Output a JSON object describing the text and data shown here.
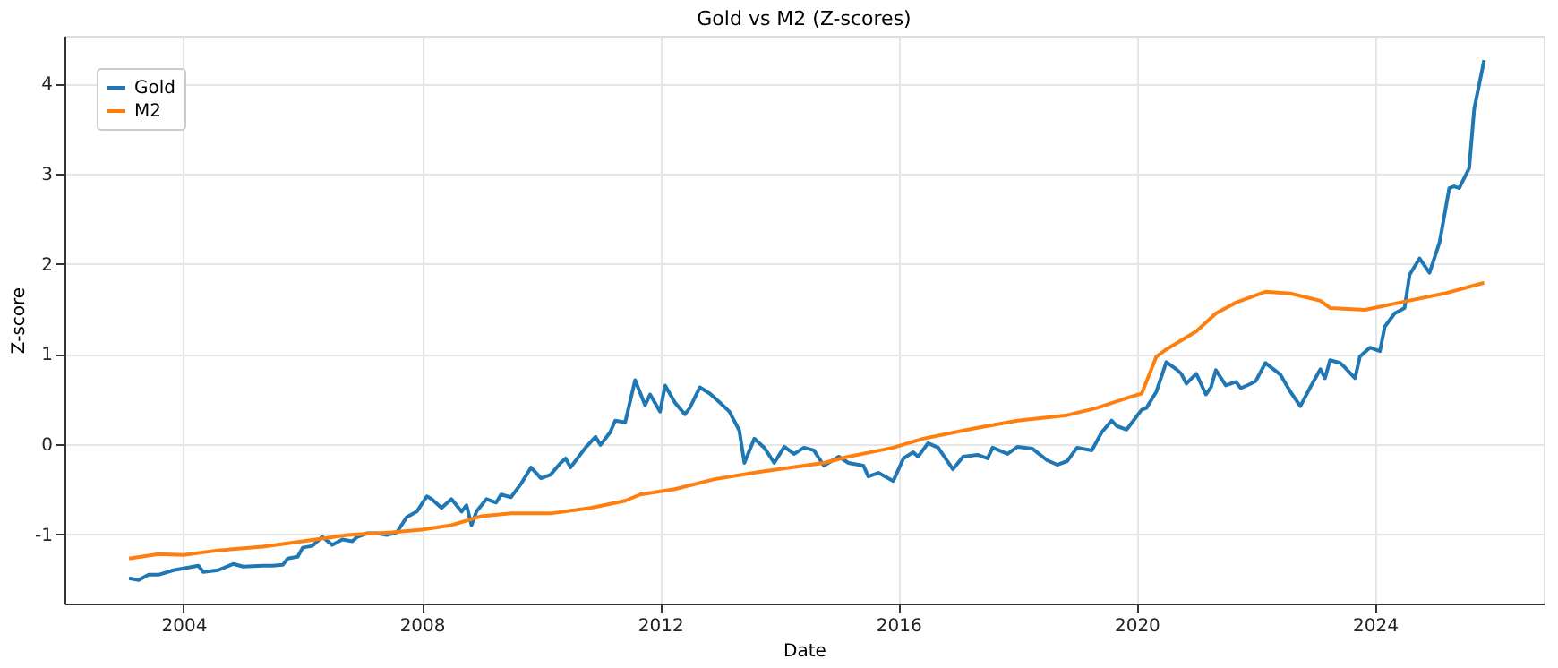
{
  "chart_data": {
    "type": "line",
    "title": "Gold vs M2 (Z-scores)",
    "xlabel": "Date",
    "ylabel": "Z-score",
    "xlim": [
      "2002-01",
      "2026-11"
    ],
    "xticks": [
      "2004",
      "2008",
      "2012",
      "2016",
      "2020",
      "2024"
    ],
    "ylim": [
      -1.77,
      4.53
    ],
    "yticks": [
      -1,
      0,
      1,
      2,
      3,
      4
    ],
    "grid": true,
    "legend": "top left",
    "marker": "none",
    "line_style": "solid",
    "series": [
      {
        "name": "Gold",
        "color": "#1f77b4",
        "x": [
          "2003-02",
          "2003-04",
          "2003-06",
          "2003-08",
          "2003-11",
          "2004-02",
          "2004-04",
          "2004-05",
          "2004-08",
          "2004-11",
          "2005-01",
          "2005-05",
          "2005-07",
          "2005-09",
          "2005-10",
          "2005-12",
          "2006-01",
          "2006-03",
          "2006-05",
          "2006-07",
          "2006-09",
          "2006-11",
          "2006-12",
          "2007-02",
          "2007-04",
          "2007-06",
          "2007-08",
          "2007-10",
          "2007-12",
          "2008-02",
          "2008-03",
          "2008-05",
          "2008-07",
          "2008-09",
          "2008-10",
          "2008-11",
          "2008-12",
          "2009-02",
          "2009-04",
          "2009-05",
          "2009-07",
          "2009-09",
          "2009-11",
          "2010-01",
          "2010-03",
          "2010-05",
          "2010-06",
          "2010-07",
          "2010-10",
          "2010-12",
          "2011-01",
          "2011-03",
          "2011-04",
          "2011-06",
          "2011-08",
          "2011-10",
          "2011-11",
          "2012-01",
          "2012-02",
          "2012-04",
          "2012-06",
          "2012-07",
          "2012-09",
          "2012-11",
          "2013-01",
          "2013-03",
          "2013-05",
          "2013-06",
          "2013-08",
          "2013-10",
          "2013-12",
          "2014-02",
          "2014-04",
          "2014-06",
          "2014-08",
          "2014-10",
          "2015-01",
          "2015-03",
          "2015-06",
          "2015-07",
          "2015-09",
          "2015-12",
          "2016-02",
          "2016-04",
          "2016-05",
          "2016-07",
          "2016-09",
          "2016-12",
          "2017-02",
          "2017-05",
          "2017-07",
          "2017-08",
          "2017-11",
          "2018-01",
          "2018-04",
          "2018-07",
          "2018-09",
          "2018-11",
          "2019-01",
          "2019-04",
          "2019-06",
          "2019-08",
          "2019-09",
          "2019-11",
          "2020-02",
          "2020-03",
          "2020-05",
          "2020-07",
          "2020-09",
          "2020-10",
          "2020-11",
          "2021-01",
          "2021-03",
          "2021-04",
          "2021-05",
          "2021-07",
          "2021-09",
          "2021-10",
          "2021-12",
          "2022-01",
          "2022-03",
          "2022-06",
          "2022-08",
          "2022-10",
          "2022-12",
          "2023-02",
          "2023-03",
          "2023-04",
          "2023-06",
          "2023-07",
          "2023-09",
          "2023-10",
          "2023-12",
          "2024-02",
          "2024-03",
          "2024-05",
          "2024-07",
          "2024-08",
          "2024-10",
          "2024-12",
          "2025-02",
          "2025-04",
          "2025-05",
          "2025-06",
          "2025-08",
          "2025-09",
          "2025-11"
        ],
        "values": [
          -1.49,
          -1.51,
          -1.45,
          -1.45,
          -1.4,
          -1.37,
          -1.35,
          -1.42,
          -1.4,
          -1.33,
          -1.36,
          -1.35,
          -1.35,
          -1.34,
          -1.27,
          -1.25,
          -1.15,
          -1.13,
          -1.03,
          -1.12,
          -1.06,
          -1.08,
          -1.03,
          -0.99,
          -0.99,
          -1.01,
          -0.98,
          -0.81,
          -0.75,
          -0.58,
          -0.61,
          -0.71,
          -0.61,
          -0.75,
          -0.68,
          -0.9,
          -0.75,
          -0.61,
          -0.65,
          -0.56,
          -0.59,
          -0.44,
          -0.26,
          -0.38,
          -0.34,
          -0.21,
          -0.16,
          -0.26,
          -0.04,
          0.08,
          -0.01,
          0.13,
          0.26,
          0.24,
          0.71,
          0.43,
          0.55,
          0.36,
          0.65,
          0.46,
          0.33,
          0.4,
          0.63,
          0.56,
          0.46,
          0.36,
          0.15,
          -0.21,
          0.06,
          -0.04,
          -0.21,
          -0.03,
          -0.11,
          -0.04,
          -0.07,
          -0.24,
          -0.14,
          -0.21,
          -0.24,
          -0.36,
          -0.32,
          -0.41,
          -0.16,
          -0.09,
          -0.14,
          0.01,
          -0.04,
          -0.28,
          -0.14,
          -0.12,
          -0.16,
          -0.04,
          -0.11,
          -0.03,
          -0.05,
          -0.18,
          -0.23,
          -0.19,
          -0.04,
          -0.07,
          0.13,
          0.26,
          0.2,
          0.16,
          0.38,
          0.4,
          0.58,
          0.91,
          0.83,
          0.78,
          0.67,
          0.78,
          0.55,
          0.63,
          0.82,
          0.65,
          0.69,
          0.62,
          0.67,
          0.7,
          0.9,
          0.77,
          0.58,
          0.42,
          0.63,
          0.83,
          0.73,
          0.93,
          0.9,
          0.85,
          0.73,
          0.97,
          1.07,
          1.03,
          1.3,
          1.45,
          1.51,
          1.88,
          2.06,
          1.9,
          2.24,
          2.84,
          2.86,
          2.84,
          3.06,
          3.72,
          4.26
        ]
      },
      {
        "name": "M2",
        "color": "#ff7f0e",
        "x": [
          "2003-02",
          "2003-08",
          "2004-01",
          "2004-08",
          "2005-05",
          "2006-01",
          "2006-10",
          "2007-07",
          "2008-01",
          "2008-07",
          "2009-01",
          "2009-07",
          "2010-03",
          "2010-11",
          "2011-06",
          "2011-09",
          "2012-04",
          "2012-12",
          "2013-09",
          "2014-10",
          "2015-03",
          "2015-12",
          "2016-06",
          "2017-04",
          "2018-01",
          "2018-11",
          "2019-05",
          "2019-11",
          "2020-02",
          "2020-05",
          "2020-07",
          "2021-01",
          "2021-05",
          "2021-09",
          "2022-03",
          "2022-08",
          "2023-02",
          "2023-04",
          "2023-11",
          "2024-06",
          "2025-03",
          "2025-11"
        ],
        "values": [
          -1.27,
          -1.22,
          -1.23,
          -1.18,
          -1.14,
          -1.08,
          -1.01,
          -0.98,
          -0.95,
          -0.9,
          -0.8,
          -0.77,
          -0.77,
          -0.71,
          -0.63,
          -0.56,
          -0.5,
          -0.39,
          -0.31,
          -0.21,
          -0.14,
          -0.04,
          0.06,
          0.17,
          0.26,
          0.32,
          0.4,
          0.51,
          0.56,
          0.97,
          1.05,
          1.25,
          1.45,
          1.57,
          1.69,
          1.67,
          1.59,
          1.51,
          1.49,
          1.57,
          1.67,
          1.79
        ]
      }
    ]
  }
}
